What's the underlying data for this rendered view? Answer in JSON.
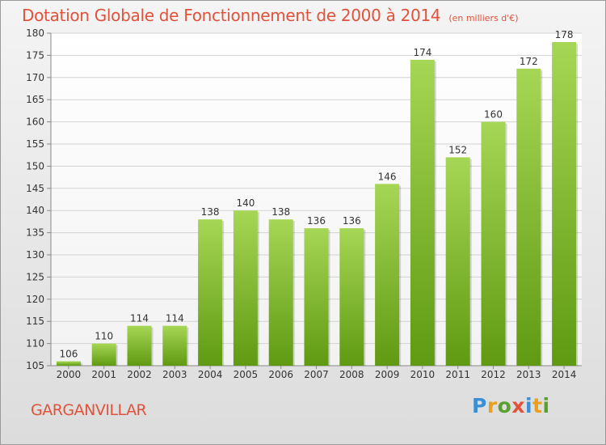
{
  "header": {
    "title": "Dotation Globale de Fonctionnement de 2000 à 2014",
    "unit": "(en milliers d'€)"
  },
  "footer": {
    "city": "GARGANVILLAR",
    "logo_text": "Proxiti",
    "logo_colors": [
      "#3b8fd6",
      "#e8a020",
      "#5aa02c",
      "#e0523a",
      "#3b8fd6",
      "#e8a020",
      "#5aa02c"
    ]
  },
  "colors": {
    "bar_top": "#a6d655",
    "bar_bottom": "#5f9a12",
    "accent": "#e0523a"
  },
  "chart_data": {
    "type": "bar",
    "categories": [
      "2000",
      "2001",
      "2002",
      "2003",
      "2004",
      "2005",
      "2006",
      "2007",
      "2008",
      "2009",
      "2010",
      "2011",
      "2012",
      "2013",
      "2014"
    ],
    "values": [
      106,
      110,
      114,
      114,
      138,
      140,
      138,
      136,
      136,
      146,
      174,
      152,
      160,
      172,
      178
    ],
    "title": "Dotation Globale de Fonctionnement de 2000 à 2014",
    "ylim": [
      105,
      180
    ],
    "yticks": [
      105,
      110,
      115,
      120,
      125,
      130,
      135,
      140,
      145,
      150,
      155,
      160,
      165,
      170,
      175,
      180
    ],
    "grid": true,
    "data_labels": true
  }
}
